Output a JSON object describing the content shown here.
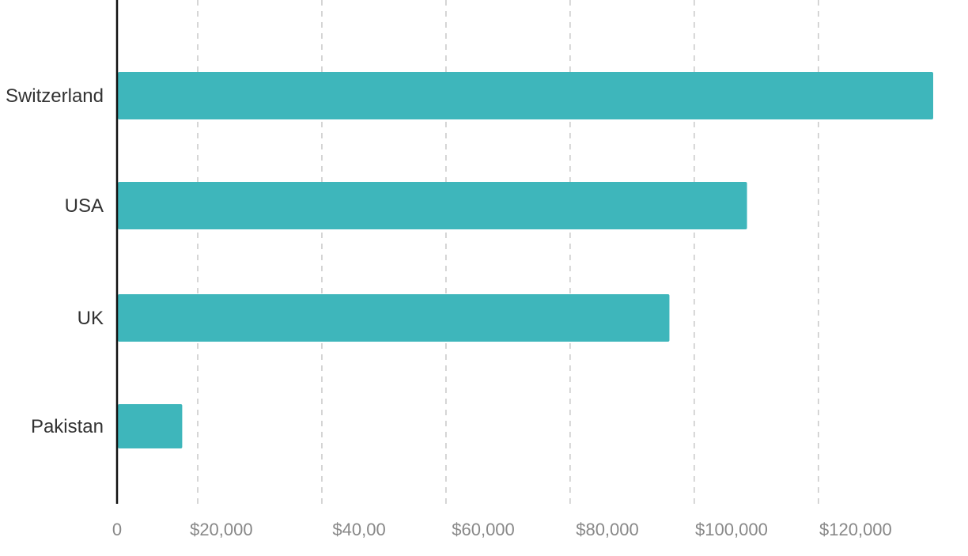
{
  "chart_data": {
    "type": "bar",
    "orientation": "horizontal",
    "categories": [
      "Switzerland",
      "USA",
      "UK",
      "Pakistan"
    ],
    "values": [
      131500,
      101500,
      89000,
      10500
    ],
    "xlim": [
      0,
      131500
    ],
    "x_ticks": [
      {
        "value": 0,
        "label": "0"
      },
      {
        "value": 16800,
        "label": "$20,000"
      },
      {
        "value": 39000,
        "label": "$40,00"
      },
      {
        "value": 59000,
        "label": "$60,000"
      },
      {
        "value": 79000,
        "label": "$80,000"
      },
      {
        "value": 99000,
        "label": "$100,000"
      },
      {
        "value": 119000,
        "label": "$120,000"
      }
    ],
    "gridlines": [
      13000,
      33000,
      53000,
      73000,
      93000,
      113000
    ],
    "grid": true,
    "grid_style": "dashed",
    "bar_color": "#3eb6bb",
    "axis_color": "#111111",
    "grid_color": "#c8c8c8",
    "title": "",
    "xlabel": "",
    "ylabel": ""
  }
}
